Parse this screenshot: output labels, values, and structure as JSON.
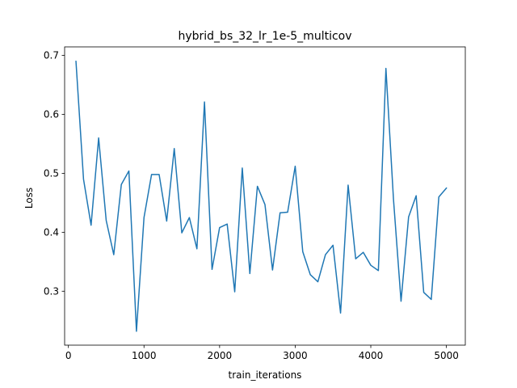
{
  "chart_data": {
    "type": "line",
    "title": "hybrid_bs_32_lr_1e-5_multicov",
    "xlabel": "train_iterations",
    "ylabel": "Loss",
    "xlim": [
      -50,
      5250
    ],
    "ylim": [
      0.2085,
      0.7145
    ],
    "xticks": [
      0,
      1000,
      2000,
      3000,
      4000,
      5000
    ],
    "yticks": [
      0.3,
      0.4,
      0.5,
      0.6,
      0.7
    ],
    "xtick_labels": [
      "0",
      "1000",
      "2000",
      "3000",
      "4000",
      "5000"
    ],
    "ytick_labels": [
      "0.3",
      "0.4",
      "0.5",
      "0.6",
      "0.7"
    ],
    "grid": false,
    "series": [
      {
        "color": "#1f77b4",
        "x": [
          100,
          200,
          300,
          400,
          500,
          600,
          700,
          800,
          900,
          1000,
          1100,
          1200,
          1300,
          1400,
          1500,
          1600,
          1700,
          1800,
          1900,
          2000,
          2100,
          2200,
          2300,
          2400,
          2500,
          2600,
          2700,
          2800,
          2900,
          3000,
          3100,
          3200,
          3300,
          3400,
          3500,
          3600,
          3700,
          3800,
          3900,
          4000,
          4100,
          4200,
          4300,
          4400,
          4500,
          4600,
          4700,
          4800,
          4900,
          5000
        ],
        "y": [
          0.69,
          0.49,
          0.412,
          0.56,
          0.42,
          0.362,
          0.481,
          0.504,
          0.232,
          0.425,
          0.498,
          0.498,
          0.419,
          0.542,
          0.399,
          0.425,
          0.372,
          0.621,
          0.337,
          0.408,
          0.414,
          0.299,
          0.509,
          0.33,
          0.478,
          0.447,
          0.336,
          0.433,
          0.434,
          0.512,
          0.367,
          0.328,
          0.316,
          0.362,
          0.378,
          0.263,
          0.48,
          0.355,
          0.366,
          0.344,
          0.335,
          0.678,
          0.456,
          0.283,
          0.426,
          0.462,
          0.298,
          0.286,
          0.46,
          0.475
        ]
      }
    ]
  }
}
